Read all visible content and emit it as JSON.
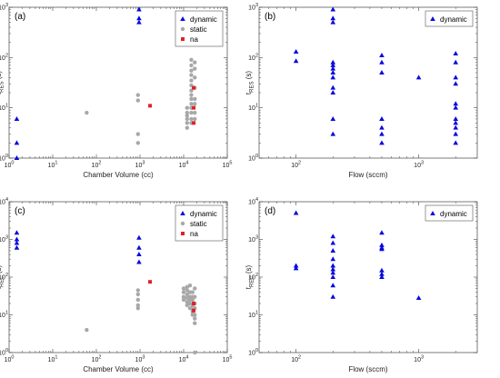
{
  "colors": {
    "dynamic": "#0a0adc",
    "static": "#a8a8a8",
    "na": "#e0202a"
  },
  "chart_data": [
    {
      "id": "a",
      "type": "scatter",
      "panel_label": "(a)",
      "xscale": "log",
      "yscale": "log",
      "xlim": [
        1,
        100000
      ],
      "ylim": [
        1,
        1000
      ],
      "xticks": [
        {
          "v": 1,
          "b": "10",
          "e": "0"
        },
        {
          "v": 10,
          "b": "10",
          "e": "1"
        },
        {
          "v": 100,
          "b": "10",
          "e": "2"
        },
        {
          "v": 1000,
          "b": "10",
          "e": "3"
        },
        {
          "v": 10000,
          "b": "10",
          "e": "4"
        },
        {
          "v": 100000,
          "b": "10",
          "e": "5"
        }
      ],
      "yticks": [
        {
          "v": 1,
          "b": "10",
          "e": "0"
        },
        {
          "v": 10,
          "b": "10",
          "e": "1"
        },
        {
          "v": 100,
          "b": "10",
          "e": "2"
        },
        {
          "v": 1000,
          "b": "10",
          "e": "3"
        }
      ],
      "xlabel": "Chamber Volume (cc)",
      "ylabel": {
        "main": "t",
        "sub": "RES",
        "unit": " (s)"
      },
      "legend": {
        "position": "top-right",
        "entries": [
          {
            "key": "dynamic",
            "label": "dynamic"
          },
          {
            "key": "static",
            "label": "static"
          },
          {
            "key": "na",
            "label": "na"
          }
        ]
      },
      "series": [
        {
          "key": "dynamic",
          "marker": "triangle",
          "points": [
            [
              1.5,
              6
            ],
            [
              1.5,
              2
            ],
            [
              1.5,
              1
            ],
            [
              950,
              900
            ],
            [
              950,
              600
            ],
            [
              950,
              500
            ]
          ]
        },
        {
          "key": "static",
          "marker": "circle",
          "points": [
            [
              60,
              8
            ],
            [
              900,
              18
            ],
            [
              900,
              14
            ],
            [
              900,
              3
            ],
            [
              900,
              2
            ],
            [
              12000,
              10
            ],
            [
              12000,
              8
            ],
            [
              12000,
              7
            ],
            [
              12000,
              6
            ],
            [
              12000,
              5
            ],
            [
              12000,
              4
            ],
            [
              15000,
              90
            ],
            [
              15000,
              70
            ],
            [
              15000,
              55
            ],
            [
              15000,
              45
            ],
            [
              15000,
              35
            ],
            [
              15000,
              28
            ],
            [
              15000,
              22
            ],
            [
              15000,
              18
            ],
            [
              15000,
              15
            ],
            [
              15000,
              12
            ],
            [
              15000,
              10
            ],
            [
              15000,
              8
            ],
            [
              15000,
              6
            ],
            [
              15000,
              5
            ],
            [
              18000,
              80
            ],
            [
              18000,
              60
            ],
            [
              18000,
              40
            ],
            [
              18000,
              25
            ],
            [
              18000,
              15
            ],
            [
              18000,
              12
            ],
            [
              18000,
              8
            ],
            [
              18000,
              6
            ]
          ]
        },
        {
          "key": "na",
          "marker": "square",
          "points": [
            [
              1700,
              11
            ],
            [
              17000,
              25
            ],
            [
              17000,
              10
            ],
            [
              17000,
              5
            ]
          ]
        }
      ]
    },
    {
      "id": "b",
      "type": "scatter",
      "panel_label": "(b)",
      "xscale": "log",
      "yscale": "log",
      "xlim": [
        50,
        3000
      ],
      "ylim": [
        1,
        1000
      ],
      "xticks": [
        {
          "v": 100,
          "b": "10",
          "e": "2"
        },
        {
          "v": 1000,
          "b": "10",
          "e": "3"
        }
      ],
      "yticks": [
        {
          "v": 1,
          "b": "10",
          "e": "0"
        },
        {
          "v": 10,
          "b": "10",
          "e": "1"
        },
        {
          "v": 100,
          "b": "10",
          "e": "2"
        },
        {
          "v": 1000,
          "b": "10",
          "e": "3"
        }
      ],
      "xlabel": "Flow (sccm)",
      "ylabel": {
        "main": "t",
        "sub": "RES",
        "unit": " (s)"
      },
      "legend": {
        "position": "top-right",
        "entries": [
          {
            "key": "dynamic",
            "label": "dynamic"
          }
        ]
      },
      "series": [
        {
          "key": "dynamic",
          "marker": "triangle",
          "points": [
            [
              100,
              130
            ],
            [
              100,
              85
            ],
            [
              200,
              900
            ],
            [
              200,
              600
            ],
            [
              200,
              500
            ],
            [
              200,
              80
            ],
            [
              200,
              70
            ],
            [
              200,
              60
            ],
            [
              200,
              50
            ],
            [
              200,
              40
            ],
            [
              200,
              25
            ],
            [
              200,
              20
            ],
            [
              200,
              6
            ],
            [
              200,
              3
            ],
            [
              500,
              110
            ],
            [
              500,
              80
            ],
            [
              500,
              50
            ],
            [
              500,
              6
            ],
            [
              500,
              4
            ],
            [
              500,
              3
            ],
            [
              500,
              2
            ],
            [
              1000,
              40
            ],
            [
              2000,
              120
            ],
            [
              2000,
              80
            ],
            [
              2000,
              40
            ],
            [
              2000,
              30
            ],
            [
              2000,
              12
            ],
            [
              2000,
              10
            ],
            [
              2000,
              6
            ],
            [
              2000,
              5
            ],
            [
              2000,
              4
            ],
            [
              2000,
              3
            ],
            [
              2000,
              2
            ]
          ]
        }
      ]
    },
    {
      "id": "c",
      "type": "scatter",
      "panel_label": "(c)",
      "xscale": "log",
      "yscale": "log",
      "xlim": [
        1,
        100000
      ],
      "ylim": [
        1,
        10000
      ],
      "xticks": [
        {
          "v": 1,
          "b": "10",
          "e": "0"
        },
        {
          "v": 10,
          "b": "10",
          "e": "1"
        },
        {
          "v": 100,
          "b": "10",
          "e": "2"
        },
        {
          "v": 1000,
          "b": "10",
          "e": "3"
        },
        {
          "v": 10000,
          "b": "10",
          "e": "4"
        },
        {
          "v": 100000,
          "b": "10",
          "e": "5"
        }
      ],
      "yticks": [
        {
          "v": 1,
          "b": "10",
          "e": "0"
        },
        {
          "v": 10,
          "b": "10",
          "e": "1"
        },
        {
          "v": 100,
          "b": "10",
          "e": "2"
        },
        {
          "v": 1000,
          "b": "10",
          "e": "3"
        },
        {
          "v": 10000,
          "b": "10",
          "e": "4"
        }
      ],
      "xlabel": "Chamber Volume (cc)",
      "ylabel": {
        "main": "t",
        "sub": "REC",
        "unit": " (s)"
      },
      "legend": {
        "position": "top-right",
        "entries": [
          {
            "key": "dynamic",
            "label": "dynamic"
          },
          {
            "key": "static",
            "label": "static"
          },
          {
            "key": "na",
            "label": "na"
          }
        ]
      },
      "series": [
        {
          "key": "dynamic",
          "marker": "triangle",
          "points": [
            [
              1.5,
              1500
            ],
            [
              1.5,
              1000
            ],
            [
              1.5,
              800
            ],
            [
              1.5,
              600
            ],
            [
              950,
              1100
            ],
            [
              950,
              600
            ],
            [
              950,
              400
            ],
            [
              950,
              250
            ]
          ]
        },
        {
          "key": "static",
          "marker": "circle",
          "points": [
            [
              60,
              4
            ],
            [
              900,
              45
            ],
            [
              900,
              35
            ],
            [
              900,
              25
            ],
            [
              900,
              18
            ],
            [
              900,
              15
            ],
            [
              10000,
              50
            ],
            [
              10000,
              40
            ],
            [
              10000,
              30
            ],
            [
              10000,
              25
            ],
            [
              12000,
              55
            ],
            [
              12000,
              45
            ],
            [
              12000,
              35
            ],
            [
              12000,
              28
            ],
            [
              12000,
              22
            ],
            [
              12000,
              18
            ],
            [
              14000,
              60
            ],
            [
              14000,
              40
            ],
            [
              14000,
              30
            ],
            [
              14000,
              25
            ],
            [
              14000,
              20
            ],
            [
              14000,
              15
            ],
            [
              16000,
              40
            ],
            [
              16000,
              30
            ],
            [
              16000,
              25
            ],
            [
              16000,
              18
            ],
            [
              16000,
              14
            ],
            [
              16000,
              12
            ],
            [
              16000,
              10
            ],
            [
              18000,
              50
            ],
            [
              18000,
              30
            ],
            [
              18000,
              20
            ],
            [
              18000,
              15
            ],
            [
              18000,
              10
            ],
            [
              18000,
              8
            ],
            [
              18000,
              6
            ],
            [
              18000,
              1
            ]
          ]
        },
        {
          "key": "na",
          "marker": "square",
          "points": [
            [
              1700,
              75
            ],
            [
              17000,
              20
            ],
            [
              17000,
              13
            ]
          ]
        }
      ]
    },
    {
      "id": "d",
      "type": "scatter",
      "panel_label": "(d)",
      "xscale": "log",
      "yscale": "log",
      "xlim": [
        50,
        3000
      ],
      "ylim": [
        1,
        10000
      ],
      "xticks": [
        {
          "v": 100,
          "b": "10",
          "e": "2"
        },
        {
          "v": 1000,
          "b": "10",
          "e": "3"
        }
      ],
      "yticks": [
        {
          "v": 1,
          "b": "10",
          "e": "0"
        },
        {
          "v": 10,
          "b": "10",
          "e": "1"
        },
        {
          "v": 100,
          "b": "10",
          "e": "2"
        },
        {
          "v": 1000,
          "b": "10",
          "e": "3"
        },
        {
          "v": 10000,
          "b": "10",
          "e": "4"
        }
      ],
      "xlabel": "Flow (sccm)",
      "ylabel": {
        "main": "t",
        "sub": "REC",
        "unit": " (s)"
      },
      "legend": {
        "position": "top-right",
        "entries": [
          {
            "key": "dynamic",
            "label": "dynamic"
          }
        ]
      },
      "series": [
        {
          "key": "dynamic",
          "marker": "triangle",
          "points": [
            [
              100,
              5000
            ],
            [
              100,
              200
            ],
            [
              100,
              170
            ],
            [
              200,
              1200
            ],
            [
              200,
              800
            ],
            [
              200,
              500
            ],
            [
              200,
              300
            ],
            [
              200,
              200
            ],
            [
              200,
              160
            ],
            [
              200,
              130
            ],
            [
              200,
              100
            ],
            [
              200,
              60
            ],
            [
              200,
              30
            ],
            [
              500,
              1500
            ],
            [
              500,
              700
            ],
            [
              500,
              600
            ],
            [
              500,
              550
            ],
            [
              500,
              150
            ],
            [
              500,
              120
            ],
            [
              500,
              100
            ],
            [
              1000,
              28
            ]
          ]
        }
      ]
    }
  ]
}
